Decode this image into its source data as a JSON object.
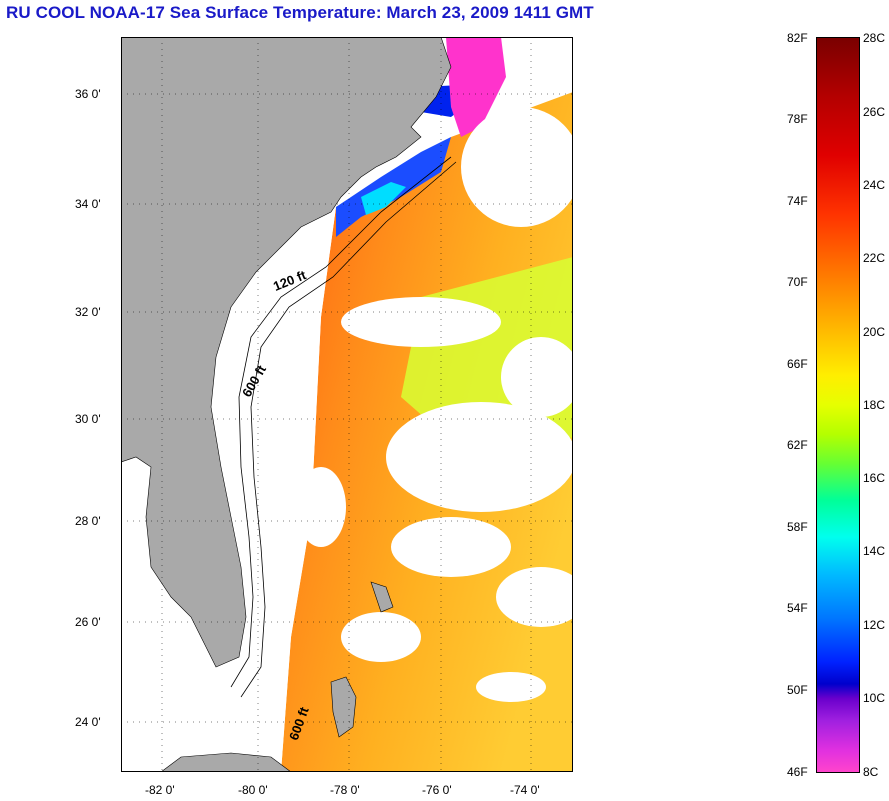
{
  "title": "RU COOL  NOAA-17  Sea Surface Temperature:  March 23, 2009 1411 GMT",
  "map": {
    "lat_labels": [
      "36 0'",
      "34 0'",
      "32 0'",
      "30 0'",
      "28 0'",
      "26 0'",
      "24 0'"
    ],
    "lon_labels": [
      "-82 0'",
      "-80 0'",
      "-78 0'",
      "-76 0'",
      "-74 0'"
    ],
    "isobath_labels": [
      "120 ft",
      "600 ft",
      "600 ft"
    ],
    "colors": {
      "land": "#a9a9a9",
      "cloud": "#ffffff",
      "water_warm": "#ff7a1a"
    }
  },
  "colorbar": {
    "f_labels": [
      "82F",
      "78F",
      "74F",
      "70F",
      "66F",
      "62F",
      "58F",
      "54F",
      "50F",
      "46F"
    ],
    "c_labels": [
      "28C",
      "26C",
      "24C",
      "22C",
      "20C",
      "18C",
      "16C",
      "14C",
      "12C",
      "10C",
      "8C"
    ]
  }
}
